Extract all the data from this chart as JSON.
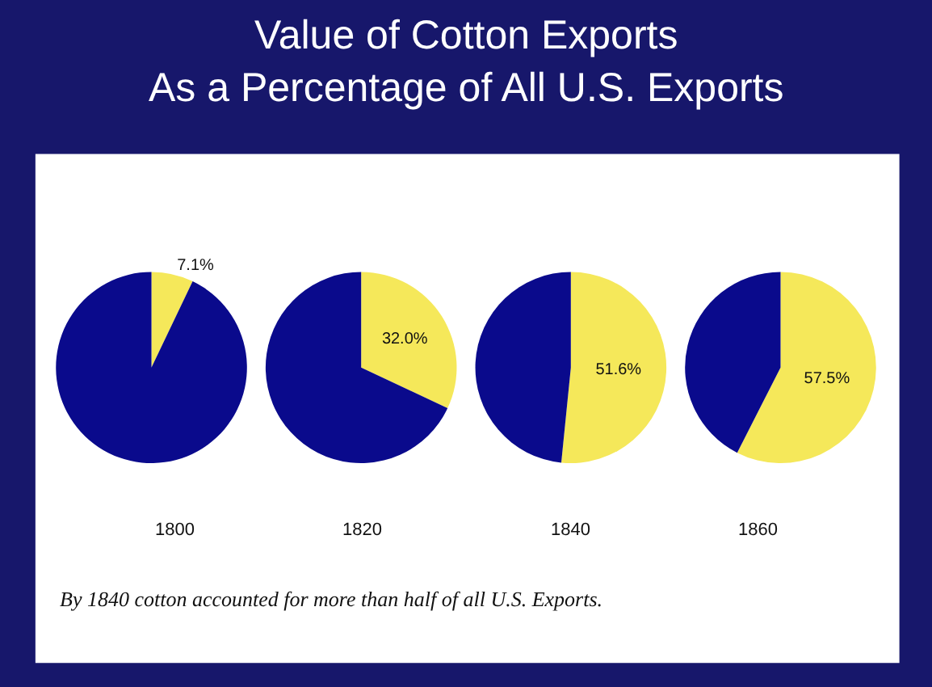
{
  "chart_data": [
    {
      "type": "pie",
      "title": "Value of Cotton Exports\nAs a Percentage of All U.S. Exports",
      "xlabel": "1800",
      "categories": [
        null,
        null
      ],
      "values": [
        7.1,
        92.9
      ],
      "colors": [
        "#f5e85a",
        "#0a0a8c"
      ],
      "value_labels": [
        "7.1%",
        null
      ]
    },
    {
      "type": "pie",
      "xlabel": "1820",
      "categories": [
        null,
        null
      ],
      "values": [
        32.0,
        68.0
      ],
      "colors": [
        "#f5e85a",
        "#0a0a8c"
      ],
      "value_labels": [
        "32.0%",
        null
      ]
    },
    {
      "type": "pie",
      "xlabel": "1840",
      "categories": [
        null,
        null
      ],
      "values": [
        51.6,
        48.4
      ],
      "colors": [
        "#f5e85a",
        "#0a0a8c"
      ],
      "value_labels": [
        "51.6%",
        null
      ]
    },
    {
      "type": "pie",
      "xlabel": "1860",
      "categories": [
        null,
        null
      ],
      "values": [
        57.5,
        42.5
      ],
      "colors": [
        "#f5e85a",
        "#0a0a8c"
      ],
      "value_labels": [
        "57.5%",
        null
      ],
      "annotations": [
        "By 1840 cotton accounted for more than half of all U.S. Exports."
      ]
    }
  ]
}
